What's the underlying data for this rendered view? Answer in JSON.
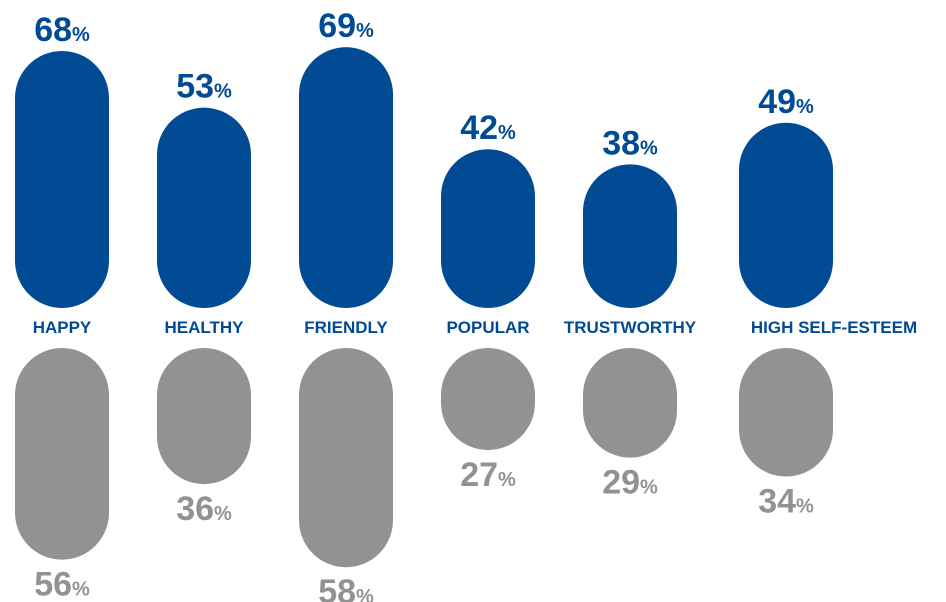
{
  "colors": {
    "top": "#004b93",
    "bottom": "#929292",
    "category": "#004b93"
  },
  "chart_data": {
    "type": "bar",
    "categories": [
      "HAPPY",
      "HEALTHY",
      "FRIENDLY",
      "POPULAR",
      "TRUSTWORTHY",
      "HIGH SELF-ESTEEM"
    ],
    "series": [
      {
        "values": [
          68,
          53,
          69,
          42,
          38,
          49
        ],
        "orientation": "up"
      },
      {
        "values": [
          56,
          36,
          58,
          27,
          29,
          34
        ],
        "orientation": "down"
      }
    ],
    "value_suffix": "%",
    "title": "",
    "xlabel": "",
    "ylabel": "",
    "grid": false,
    "legend": "none"
  }
}
